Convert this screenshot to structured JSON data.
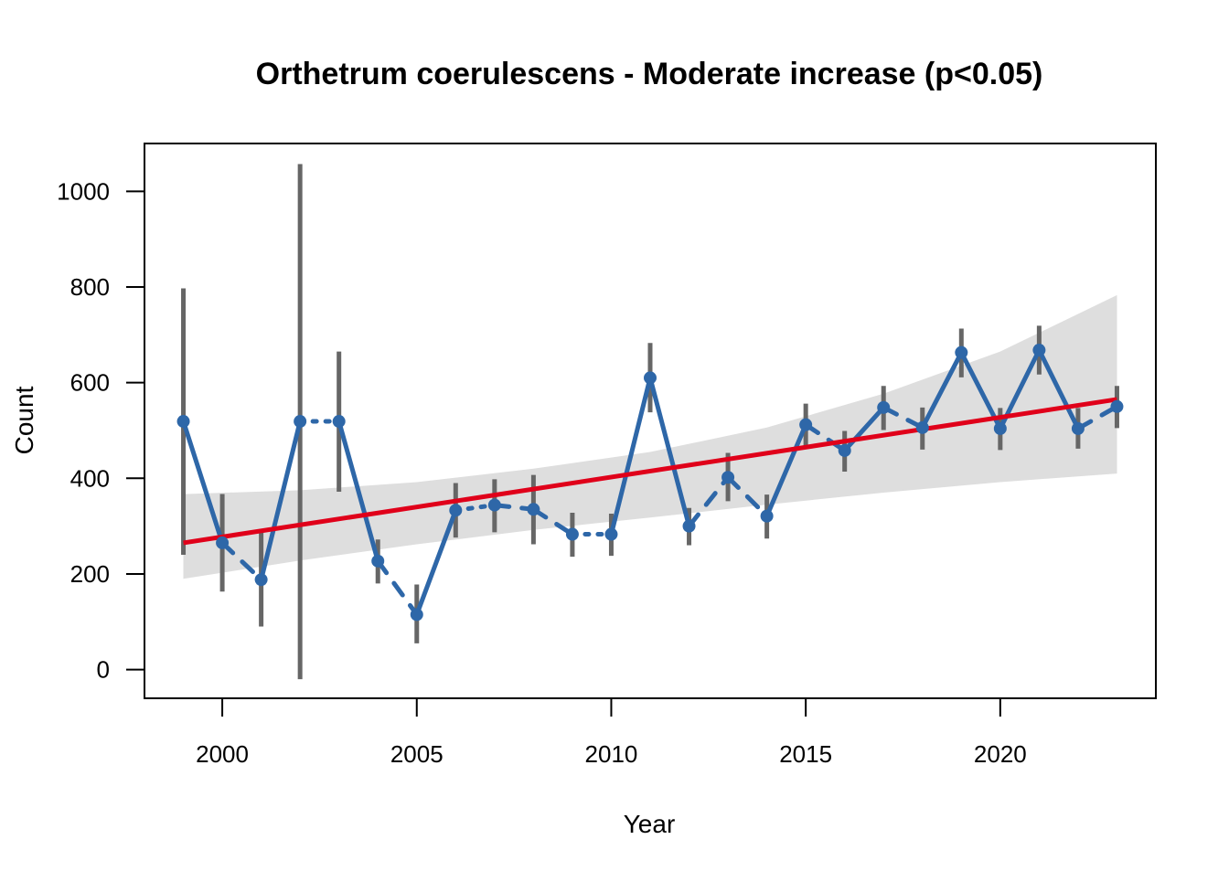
{
  "chart_data": {
    "type": "line",
    "title": "Orthetrum coerulescens - Moderate increase (p<0.05)",
    "xlabel": "Year",
    "ylabel": "Count",
    "xlim": [
      1998,
      2024
    ],
    "ylim": [
      -60,
      1100
    ],
    "x_ticks": [
      2000,
      2005,
      2010,
      2015,
      2020
    ],
    "y_ticks": [
      0,
      200,
      400,
      600,
      800,
      1000
    ],
    "grid": false,
    "colors": {
      "index": "#2e67a8",
      "error_bar": "#666666",
      "trend": "#e0001a",
      "ci_band": "#dedede"
    },
    "series": [
      {
        "x": [
          1999,
          2000,
          2001,
          2002,
          2003,
          2004,
          2005,
          2006,
          2007,
          2008,
          2009,
          2010,
          2011,
          2012,
          2013,
          2014,
          2015,
          2016,
          2017,
          2018,
          2019,
          2020,
          2021,
          2022,
          2023
        ],
        "y": [
          519,
          265,
          188,
          519,
          519,
          227,
          115,
          333,
          344,
          335,
          283,
          283,
          610,
          300,
          402,
          321,
          512,
          458,
          548,
          506,
          663,
          504,
          668,
          504,
          550
        ],
        "lower": [
          240,
          163,
          90,
          -20,
          372,
          180,
          55,
          276,
          287,
          262,
          236,
          238,
          538,
          260,
          352,
          274,
          467,
          414,
          501,
          460,
          611,
          459,
          617,
          462,
          505
        ],
        "upper": [
          797,
          367,
          287,
          1057,
          665,
          272,
          178,
          390,
          398,
          407,
          328,
          326,
          683,
          338,
          453,
          366,
          556,
          499,
          593,
          548,
          713,
          547,
          719,
          547,
          593
        ]
      }
    ],
    "line_styles": [
      "solid",
      "dashed",
      "solid",
      "dotted",
      "solid",
      "dashed",
      "solid",
      "dotted",
      "dashed",
      "dashed",
      "dotted",
      "solid",
      "solid",
      "dashed",
      "dashed",
      "solid",
      "dashed",
      "solid",
      "dashed",
      "solid",
      "solid",
      "solid",
      "solid",
      "dashed"
    ],
    "trend": {
      "x": [
        1999,
        2023
      ],
      "y": [
        265,
        565
      ]
    },
    "confidence_band": {
      "x": [
        1999,
        2002,
        2005,
        2008,
        2011,
        2014,
        2017,
        2020,
        2023
      ],
      "lower": [
        190,
        228,
        262,
        292,
        318,
        345,
        370,
        392,
        410
      ],
      "upper": [
        367,
        375,
        392,
        420,
        455,
        506,
        577,
        665,
        783
      ]
    }
  }
}
